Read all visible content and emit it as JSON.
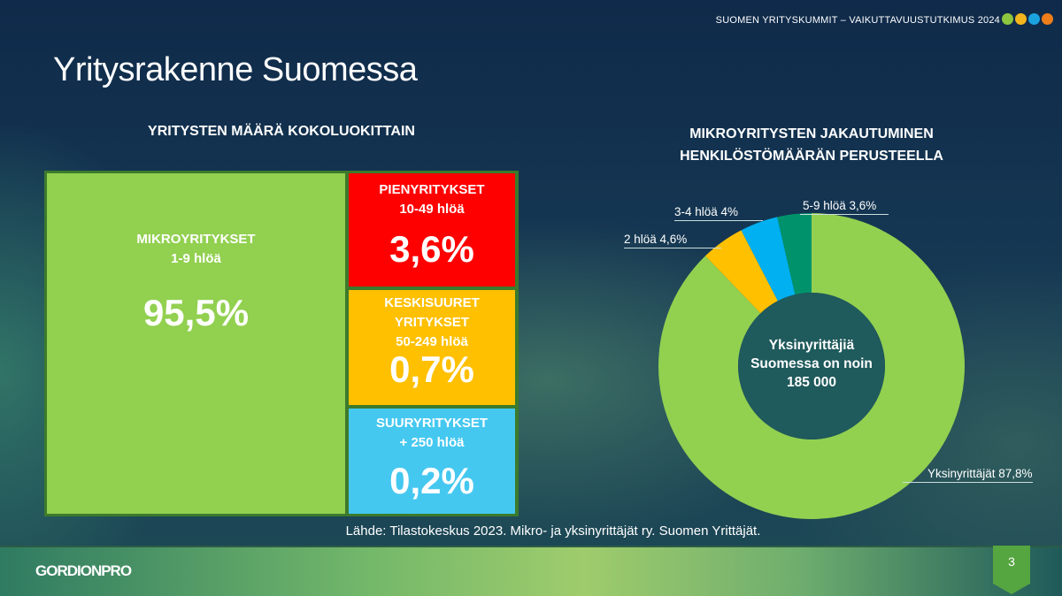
{
  "header": {
    "text": "SUOMEN YRITYSKUMMIT – VAIKUTTAVUUSTUTKIMUS 2024",
    "dot_colors": [
      "#8dc63f",
      "#f2b51c",
      "#1ba3e0",
      "#ef7d1a"
    ]
  },
  "title": "Yritysrakenne Suomessa",
  "source": "Lähde: Tilastokeskus 2023. Mikro- ja yksinyrittäjät ry. Suomen Yrittäjät.",
  "footer": {
    "logo": "GORDIONPRO",
    "page": "3"
  },
  "chart_data": [
    {
      "type": "treemap",
      "title": "YRITYSTEN MÄÄRÄ KOKOLUOKITTAIN",
      "items": [
        {
          "name": "MIKROYRITYKSET",
          "sub": "1-9 hlöä",
          "value": 95.5,
          "label": "95,5%",
          "color": "#92d050"
        },
        {
          "name": "PIENYRITYKSET",
          "sub": "10-49 hlöä",
          "value": 3.6,
          "label": "3,6%",
          "color": "#ff0000"
        },
        {
          "name": "KESKISUURET YRITYKSET",
          "sub": "50-249 hlöä",
          "value": 0.7,
          "label": "0,7%",
          "color": "#ffc000"
        },
        {
          "name": "SUURYRITYKSET",
          "sub": "+ 250 hlöä",
          "value": 0.2,
          "label": "0,2%",
          "color": "#45c8f0"
        }
      ]
    },
    {
      "type": "pie",
      "donut": true,
      "title_lines": [
        "MIKROYRITYSTEN JAKAUTUMINEN",
        "HENKILÖSTÖMÄÄRÄN PERUSTEELLA"
      ],
      "center_lines": [
        "Yksinyrittäjiä",
        "Suomessa on  noin",
        "185 000"
      ],
      "slices": [
        {
          "name": "Yksinyrittäjät",
          "value": 87.8,
          "label": "Yksinyrittäjät 87,8%",
          "color": "#92d050"
        },
        {
          "name": "2 hlöä",
          "value": 4.6,
          "label": "2 hlöä 4,6%",
          "color": "#ffc000"
        },
        {
          "name": "3-4 hlöä",
          "value": 4,
          "label": "3-4 hlöä 4%",
          "color": "#00b0f0"
        },
        {
          "name": "5-9 hlöä",
          "value": 3.6,
          "label": "5-9 hlöä 3,6%",
          "color": "#00936b"
        }
      ]
    }
  ]
}
